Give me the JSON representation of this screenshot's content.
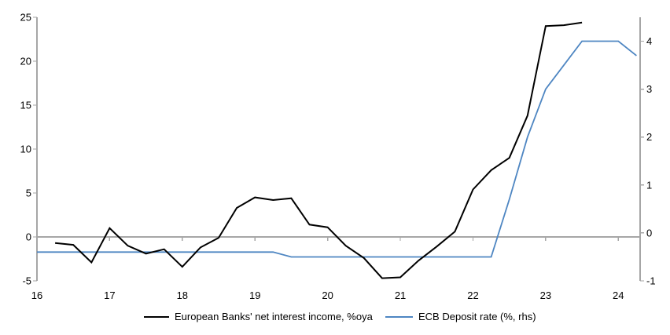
{
  "chart_data": {
    "type": "line",
    "x_axis": {
      "ticks": [
        16,
        17,
        18,
        19,
        20,
        21,
        22,
        23,
        24
      ],
      "range": [
        16,
        24.3
      ],
      "tick_position": "on-zero-line"
    },
    "left_axis": {
      "ticks": [
        -5,
        0,
        5,
        10,
        15,
        20,
        25
      ],
      "range": [
        -5,
        25
      ]
    },
    "right_axis": {
      "ticks": [
        -1,
        0,
        1,
        2,
        3,
        4
      ],
      "range": [
        -1,
        4.5
      ]
    },
    "grid": "zero-line-only",
    "legend_position": "bottom",
    "colors": {
      "axis": "#a6a6a6",
      "series_nii": "#000000",
      "series_ecb": "#4e86c2",
      "background": "#ffffff",
      "text": "#000000"
    },
    "series": [
      {
        "name": "European Banks' net interest income, %oya",
        "axis": "left",
        "color": "#000000",
        "stroke_width": 2,
        "x": [
          16.25,
          16.5,
          16.75,
          17.0,
          17.25,
          17.5,
          17.75,
          18.0,
          18.25,
          18.5,
          18.75,
          19.0,
          19.25,
          19.5,
          19.75,
          20.0,
          20.25,
          20.5,
          20.75,
          21.0,
          21.25,
          21.5,
          21.75,
          22.0,
          22.25,
          22.5,
          22.75,
          23.0,
          23.25,
          23.5
        ],
        "values": [
          -0.7,
          -0.9,
          -2.9,
          1.0,
          -1.0,
          -1.9,
          -1.4,
          -3.4,
          -1.2,
          -0.1,
          3.3,
          4.5,
          4.2,
          4.4,
          1.4,
          1.1,
          -1.0,
          -2.4,
          -4.7,
          -4.6,
          -2.7,
          -1.1,
          0.6,
          5.4,
          7.6,
          9.0,
          13.8,
          24.0,
          24.1,
          24.4
        ]
      },
      {
        "name": "ECB Deposit rate (%, rhs)",
        "axis": "right",
        "color": "#4e86c2",
        "stroke_width": 1.8,
        "x": [
          16.0,
          16.25,
          16.5,
          16.75,
          17.0,
          17.25,
          17.5,
          17.75,
          18.0,
          18.25,
          18.5,
          18.75,
          19.0,
          19.25,
          19.5,
          19.75,
          20.0,
          20.25,
          20.5,
          20.75,
          21.0,
          21.25,
          21.5,
          21.75,
          22.0,
          22.25,
          22.5,
          22.75,
          23.0,
          23.25,
          23.5,
          23.75,
          24.0,
          24.25
        ],
        "values": [
          -0.4,
          -0.4,
          -0.4,
          -0.4,
          -0.4,
          -0.4,
          -0.4,
          -0.4,
          -0.4,
          -0.4,
          -0.4,
          -0.4,
          -0.4,
          -0.4,
          -0.5,
          -0.5,
          -0.5,
          -0.5,
          -0.5,
          -0.5,
          -0.5,
          -0.5,
          -0.5,
          -0.5,
          -0.5,
          -0.5,
          0.7,
          2.0,
          3.0,
          3.5,
          4.0,
          4.0,
          4.0,
          3.7
        ]
      }
    ]
  }
}
